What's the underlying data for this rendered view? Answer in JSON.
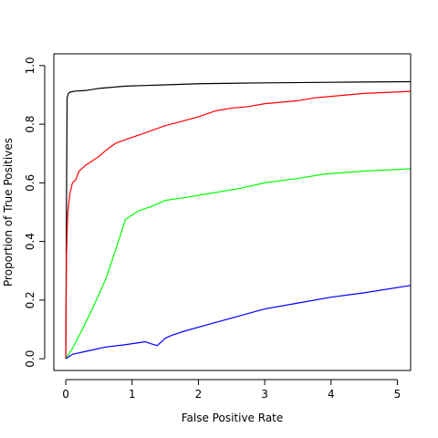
{
  "chart_data": {
    "type": "line",
    "title": "",
    "xlabel": "False Positive Rate",
    "ylabel": "Proportion of True Positives",
    "xlim": [
      -0.18,
      5.2
    ],
    "ylim": [
      -0.04,
      1.04
    ],
    "x_ticks": [
      0,
      1,
      2,
      3,
      4,
      5
    ],
    "y_ticks": [
      0.0,
      0.2,
      0.4,
      0.6,
      0.8,
      1.0
    ],
    "x_tick_labels": [
      "0",
      "1",
      "2",
      "3",
      "4",
      "5"
    ],
    "y_tick_labels": [
      "0.0",
      "0.2",
      "0.4",
      "0.6",
      "0.8",
      "1.0"
    ],
    "grid": false,
    "legend": "none",
    "series": [
      {
        "color": "#000000",
        "points": [
          [
            0,
            0
          ],
          [
            0.01,
            0.5
          ],
          [
            0.02,
            0.89
          ],
          [
            0.04,
            0.905
          ],
          [
            0.07,
            0.91
          ],
          [
            0.15,
            0.913
          ],
          [
            0.3,
            0.915
          ],
          [
            0.5,
            0.922
          ],
          [
            0.7,
            0.926
          ],
          [
            0.9,
            0.93
          ],
          [
            1.2,
            0.932
          ],
          [
            1.6,
            0.935
          ],
          [
            2.0,
            0.938
          ],
          [
            3.0,
            0.941
          ],
          [
            4.0,
            0.943
          ],
          [
            5.2,
            0.945
          ]
        ]
      },
      {
        "color": "#ff0000",
        "points": [
          [
            0,
            0
          ],
          [
            0.01,
            0.35
          ],
          [
            0.03,
            0.5
          ],
          [
            0.06,
            0.56
          ],
          [
            0.1,
            0.6
          ],
          [
            0.15,
            0.61
          ],
          [
            0.2,
            0.64
          ],
          [
            0.3,
            0.66
          ],
          [
            0.4,
            0.675
          ],
          [
            0.5,
            0.69
          ],
          [
            0.6,
            0.71
          ],
          [
            0.75,
            0.735
          ],
          [
            1.0,
            0.755
          ],
          [
            1.25,
            0.775
          ],
          [
            1.5,
            0.795
          ],
          [
            1.75,
            0.81
          ],
          [
            2.0,
            0.825
          ],
          [
            2.25,
            0.845
          ],
          [
            2.5,
            0.855
          ],
          [
            2.75,
            0.86
          ],
          [
            3.0,
            0.87
          ],
          [
            3.25,
            0.875
          ],
          [
            3.5,
            0.88
          ],
          [
            3.75,
            0.89
          ],
          [
            4.0,
            0.895
          ],
          [
            4.5,
            0.905
          ],
          [
            5.2,
            0.912
          ]
        ]
      },
      {
        "color": "#00ff00",
        "points": [
          [
            0,
            0
          ],
          [
            0.1,
            0.035
          ],
          [
            0.25,
            0.1
          ],
          [
            0.4,
            0.17
          ],
          [
            0.6,
            0.27
          ],
          [
            0.75,
            0.37
          ],
          [
            0.9,
            0.475
          ],
          [
            1.0,
            0.49
          ],
          [
            1.1,
            0.505
          ],
          [
            1.3,
            0.52
          ],
          [
            1.5,
            0.54
          ],
          [
            1.8,
            0.55
          ],
          [
            2.2,
            0.565
          ],
          [
            2.6,
            0.58
          ],
          [
            3.0,
            0.6
          ],
          [
            3.5,
            0.615
          ],
          [
            3.9,
            0.63
          ],
          [
            4.5,
            0.64
          ],
          [
            5.2,
            0.648
          ]
        ]
      },
      {
        "color": "#0000ff",
        "points": [
          [
            0,
            0
          ],
          [
            0.1,
            0.015
          ],
          [
            0.3,
            0.025
          ],
          [
            0.6,
            0.04
          ],
          [
            0.9,
            0.048
          ],
          [
            1.2,
            0.058
          ],
          [
            1.3,
            0.05
          ],
          [
            1.38,
            0.045
          ],
          [
            1.5,
            0.07
          ],
          [
            1.6,
            0.08
          ],
          [
            1.8,
            0.095
          ],
          [
            2.2,
            0.12
          ],
          [
            2.6,
            0.145
          ],
          [
            3.0,
            0.17
          ],
          [
            3.5,
            0.19
          ],
          [
            4.0,
            0.21
          ],
          [
            4.5,
            0.225
          ],
          [
            5.2,
            0.25
          ]
        ]
      }
    ]
  }
}
